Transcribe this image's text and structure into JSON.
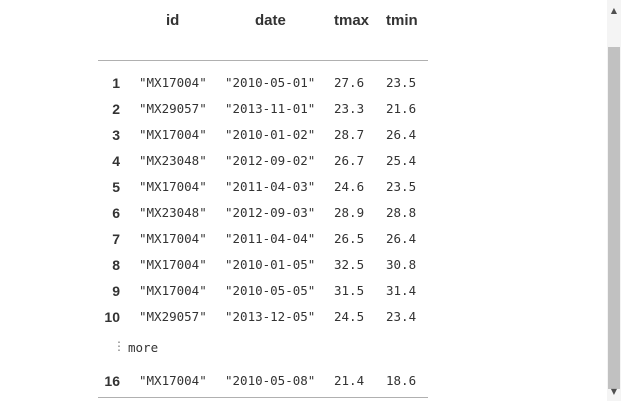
{
  "table": {
    "columns": [
      "id",
      "date",
      "tmax",
      "tmin"
    ],
    "rows": [
      {
        "index": "1",
        "id": "\"MX17004\"",
        "date": "\"2010-05-01\"",
        "tmax": "27.6",
        "tmin": "23.5"
      },
      {
        "index": "2",
        "id": "\"MX29057\"",
        "date": "\"2013-11-01\"",
        "tmax": "23.3",
        "tmin": "21.6"
      },
      {
        "index": "3",
        "id": "\"MX17004\"",
        "date": "\"2010-01-02\"",
        "tmax": "28.7",
        "tmin": "26.4"
      },
      {
        "index": "4",
        "id": "\"MX23048\"",
        "date": "\"2012-09-02\"",
        "tmax": "26.7",
        "tmin": "25.4"
      },
      {
        "index": "5",
        "id": "\"MX17004\"",
        "date": "\"2011-04-03\"",
        "tmax": "24.6",
        "tmin": "23.5"
      },
      {
        "index": "6",
        "id": "\"MX23048\"",
        "date": "\"2012-09-03\"",
        "tmax": "28.9",
        "tmin": "28.8"
      },
      {
        "index": "7",
        "id": "\"MX17004\"",
        "date": "\"2011-04-04\"",
        "tmax": "26.5",
        "tmin": "26.4"
      },
      {
        "index": "8",
        "id": "\"MX17004\"",
        "date": "\"2010-01-05\"",
        "tmax": "32.5",
        "tmin": "30.8"
      },
      {
        "index": "9",
        "id": "\"MX17004\"",
        "date": "\"2010-05-05\"",
        "tmax": "31.5",
        "tmin": "31.4"
      },
      {
        "index": "10",
        "id": "\"MX29057\"",
        "date": "\"2013-12-05\"",
        "tmax": "24.5",
        "tmin": "23.4"
      }
    ],
    "more_label": "more",
    "more_icon": "vertical-ellipsis-icon",
    "last_row": {
      "index": "16",
      "id": "\"MX17004\"",
      "date": "\"2010-05-08\"",
      "tmax": "21.4",
      "tmin": "18.6"
    }
  },
  "scrollbar": {
    "up_icon": "scroll-up-arrow-icon",
    "down_icon": "scroll-down-arrow-icon",
    "thumb_color": "#c1c1c1",
    "track_color": "#f4f4f4"
  }
}
